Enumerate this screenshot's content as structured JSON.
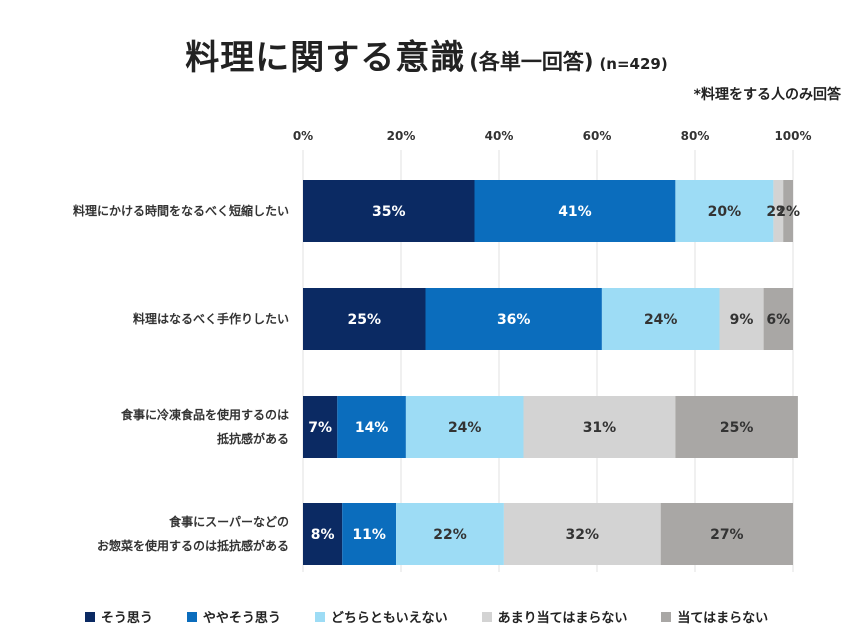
{
  "title": "料理に関する意識",
  "subtitle": "(各単一回答)",
  "sample": "(n=429)",
  "note": "*料理をする人のみ回答",
  "colors": [
    "#0b2a63",
    "#0b6dbd",
    "#9ddcf5",
    "#d3d3d3",
    "#a9a7a5"
  ],
  "chart_data": {
    "type": "bar",
    "orientation": "horizontal",
    "stacked": true,
    "xlim": [
      0,
      100
    ],
    "x_ticks": [
      "0%",
      "20%",
      "40%",
      "60%",
      "80%",
      "100%"
    ],
    "categories": [
      [
        "料理にかける時間をなるべく短縮したい"
      ],
      [
        "料理はなるべく手作りしたい"
      ],
      [
        "食事に冷凍食品を使用するのは",
        "抵抗感がある"
      ],
      [
        "食事にスーパーなどの",
        "お惣菜を使用するのは抵抗感がある"
      ]
    ],
    "series": [
      {
        "name": "そう思う",
        "values": [
          35,
          25,
          7,
          8
        ]
      },
      {
        "name": "ややそう思う",
        "values": [
          41,
          36,
          14,
          11
        ]
      },
      {
        "name": "どちらともいえない",
        "values": [
          20,
          24,
          24,
          22
        ]
      },
      {
        "name": "あまり当てはまらない",
        "values": [
          2,
          9,
          31,
          32
        ]
      },
      {
        "name": "当てはまらない",
        "values": [
          2,
          6,
          25,
          27
        ]
      }
    ],
    "legend_position": "bottom",
    "grid": true
  }
}
